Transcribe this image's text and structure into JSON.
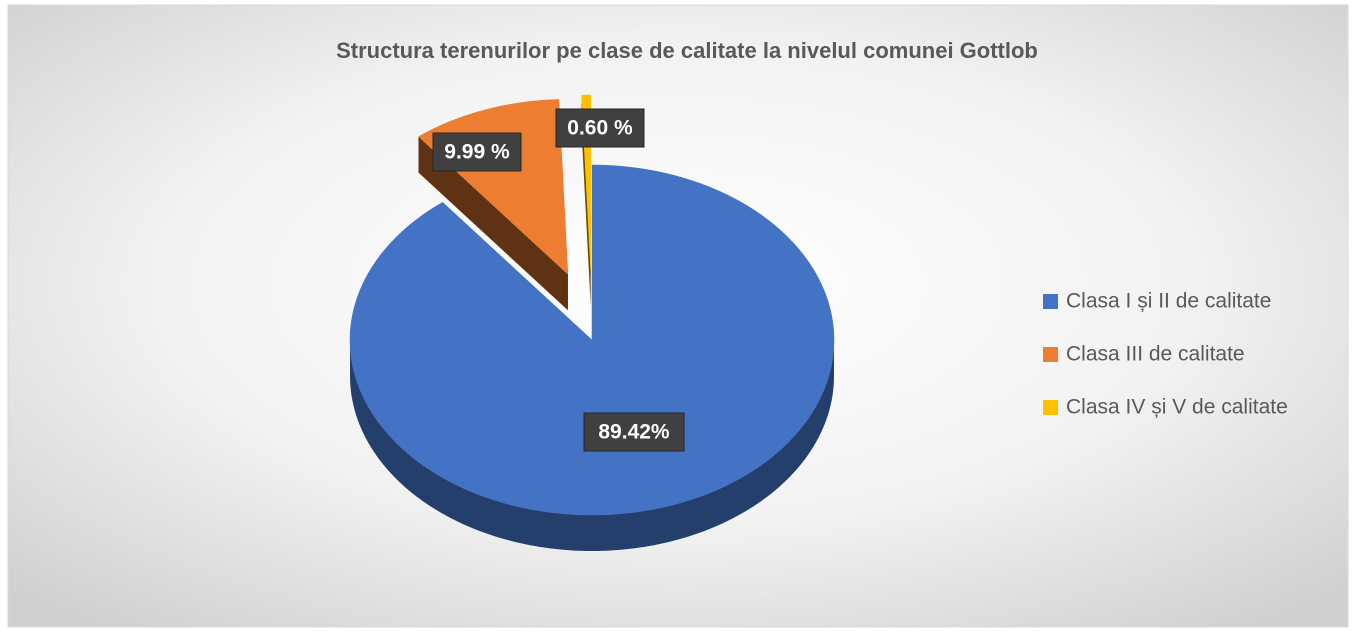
{
  "chart_data": {
    "type": "pie",
    "title": "Structura terenurilor pe clase de calitate la nivelul comunei Gottlob",
    "categories": [
      "Clasa I și II de calitate",
      "Clasa III de calitate",
      "Clasa IV și V de calitate"
    ],
    "values": [
      89.42,
      9.99,
      0.6
    ],
    "value_labels": [
      "89.42%",
      "9.99 %",
      "0.60 %"
    ],
    "colors": [
      "#4472c4",
      "#ed7d31",
      "#ffc000"
    ],
    "legend": "right"
  }
}
